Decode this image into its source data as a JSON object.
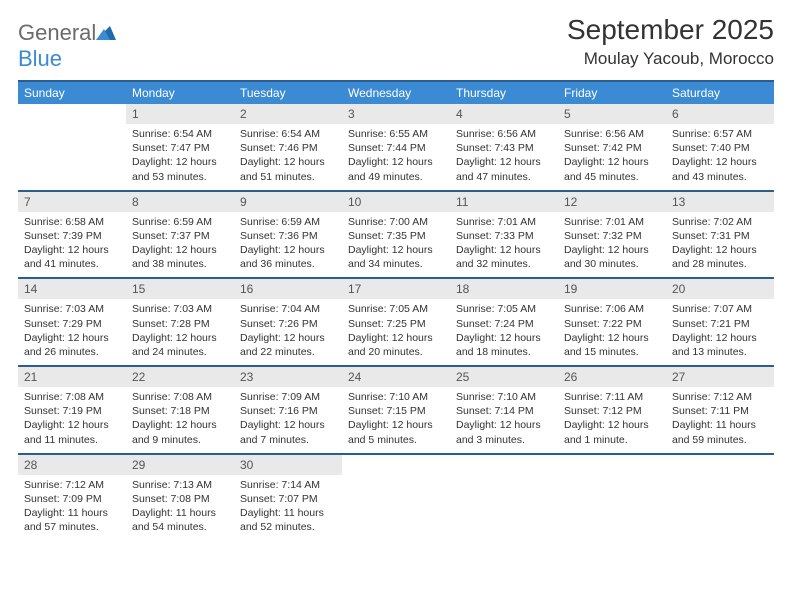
{
  "brand": {
    "part1": "General",
    "part2": "Blue"
  },
  "title": "September 2025",
  "location": "Moulay Yacoub, Morocco",
  "colors": {
    "header_bg": "#3b8bd4",
    "header_text": "#ffffff",
    "border": "#295e8e",
    "daynum_bg": "#e9e9e9",
    "daynum_text": "#555555",
    "body_text": "#333333",
    "logo_gray": "#6b6b6b",
    "logo_blue": "#3b8bd4",
    "page_bg": "#ffffff"
  },
  "weekdays": [
    "Sunday",
    "Monday",
    "Tuesday",
    "Wednesday",
    "Thursday",
    "Friday",
    "Saturday"
  ],
  "weeks": [
    [
      {
        "num": "",
        "sunrise": "",
        "sunset": "",
        "daylight": ""
      },
      {
        "num": "1",
        "sunrise": "Sunrise: 6:54 AM",
        "sunset": "Sunset: 7:47 PM",
        "daylight": "Daylight: 12 hours and 53 minutes."
      },
      {
        "num": "2",
        "sunrise": "Sunrise: 6:54 AM",
        "sunset": "Sunset: 7:46 PM",
        "daylight": "Daylight: 12 hours and 51 minutes."
      },
      {
        "num": "3",
        "sunrise": "Sunrise: 6:55 AM",
        "sunset": "Sunset: 7:44 PM",
        "daylight": "Daylight: 12 hours and 49 minutes."
      },
      {
        "num": "4",
        "sunrise": "Sunrise: 6:56 AM",
        "sunset": "Sunset: 7:43 PM",
        "daylight": "Daylight: 12 hours and 47 minutes."
      },
      {
        "num": "5",
        "sunrise": "Sunrise: 6:56 AM",
        "sunset": "Sunset: 7:42 PM",
        "daylight": "Daylight: 12 hours and 45 minutes."
      },
      {
        "num": "6",
        "sunrise": "Sunrise: 6:57 AM",
        "sunset": "Sunset: 7:40 PM",
        "daylight": "Daylight: 12 hours and 43 minutes."
      }
    ],
    [
      {
        "num": "7",
        "sunrise": "Sunrise: 6:58 AM",
        "sunset": "Sunset: 7:39 PM",
        "daylight": "Daylight: 12 hours and 41 minutes."
      },
      {
        "num": "8",
        "sunrise": "Sunrise: 6:59 AM",
        "sunset": "Sunset: 7:37 PM",
        "daylight": "Daylight: 12 hours and 38 minutes."
      },
      {
        "num": "9",
        "sunrise": "Sunrise: 6:59 AM",
        "sunset": "Sunset: 7:36 PM",
        "daylight": "Daylight: 12 hours and 36 minutes."
      },
      {
        "num": "10",
        "sunrise": "Sunrise: 7:00 AM",
        "sunset": "Sunset: 7:35 PM",
        "daylight": "Daylight: 12 hours and 34 minutes."
      },
      {
        "num": "11",
        "sunrise": "Sunrise: 7:01 AM",
        "sunset": "Sunset: 7:33 PM",
        "daylight": "Daylight: 12 hours and 32 minutes."
      },
      {
        "num": "12",
        "sunrise": "Sunrise: 7:01 AM",
        "sunset": "Sunset: 7:32 PM",
        "daylight": "Daylight: 12 hours and 30 minutes."
      },
      {
        "num": "13",
        "sunrise": "Sunrise: 7:02 AM",
        "sunset": "Sunset: 7:31 PM",
        "daylight": "Daylight: 12 hours and 28 minutes."
      }
    ],
    [
      {
        "num": "14",
        "sunrise": "Sunrise: 7:03 AM",
        "sunset": "Sunset: 7:29 PM",
        "daylight": "Daylight: 12 hours and 26 minutes."
      },
      {
        "num": "15",
        "sunrise": "Sunrise: 7:03 AM",
        "sunset": "Sunset: 7:28 PM",
        "daylight": "Daylight: 12 hours and 24 minutes."
      },
      {
        "num": "16",
        "sunrise": "Sunrise: 7:04 AM",
        "sunset": "Sunset: 7:26 PM",
        "daylight": "Daylight: 12 hours and 22 minutes."
      },
      {
        "num": "17",
        "sunrise": "Sunrise: 7:05 AM",
        "sunset": "Sunset: 7:25 PM",
        "daylight": "Daylight: 12 hours and 20 minutes."
      },
      {
        "num": "18",
        "sunrise": "Sunrise: 7:05 AM",
        "sunset": "Sunset: 7:24 PM",
        "daylight": "Daylight: 12 hours and 18 minutes."
      },
      {
        "num": "19",
        "sunrise": "Sunrise: 7:06 AM",
        "sunset": "Sunset: 7:22 PM",
        "daylight": "Daylight: 12 hours and 15 minutes."
      },
      {
        "num": "20",
        "sunrise": "Sunrise: 7:07 AM",
        "sunset": "Sunset: 7:21 PM",
        "daylight": "Daylight: 12 hours and 13 minutes."
      }
    ],
    [
      {
        "num": "21",
        "sunrise": "Sunrise: 7:08 AM",
        "sunset": "Sunset: 7:19 PM",
        "daylight": "Daylight: 12 hours and 11 minutes."
      },
      {
        "num": "22",
        "sunrise": "Sunrise: 7:08 AM",
        "sunset": "Sunset: 7:18 PM",
        "daylight": "Daylight: 12 hours and 9 minutes."
      },
      {
        "num": "23",
        "sunrise": "Sunrise: 7:09 AM",
        "sunset": "Sunset: 7:16 PM",
        "daylight": "Daylight: 12 hours and 7 minutes."
      },
      {
        "num": "24",
        "sunrise": "Sunrise: 7:10 AM",
        "sunset": "Sunset: 7:15 PM",
        "daylight": "Daylight: 12 hours and 5 minutes."
      },
      {
        "num": "25",
        "sunrise": "Sunrise: 7:10 AM",
        "sunset": "Sunset: 7:14 PM",
        "daylight": "Daylight: 12 hours and 3 minutes."
      },
      {
        "num": "26",
        "sunrise": "Sunrise: 7:11 AM",
        "sunset": "Sunset: 7:12 PM",
        "daylight": "Daylight: 12 hours and 1 minute."
      },
      {
        "num": "27",
        "sunrise": "Sunrise: 7:12 AM",
        "sunset": "Sunset: 7:11 PM",
        "daylight": "Daylight: 11 hours and 59 minutes."
      }
    ],
    [
      {
        "num": "28",
        "sunrise": "Sunrise: 7:12 AM",
        "sunset": "Sunset: 7:09 PM",
        "daylight": "Daylight: 11 hours and 57 minutes."
      },
      {
        "num": "29",
        "sunrise": "Sunrise: 7:13 AM",
        "sunset": "Sunset: 7:08 PM",
        "daylight": "Daylight: 11 hours and 54 minutes."
      },
      {
        "num": "30",
        "sunrise": "Sunrise: 7:14 AM",
        "sunset": "Sunset: 7:07 PM",
        "daylight": "Daylight: 11 hours and 52 minutes."
      },
      {
        "num": "",
        "sunrise": "",
        "sunset": "",
        "daylight": ""
      },
      {
        "num": "",
        "sunrise": "",
        "sunset": "",
        "daylight": ""
      },
      {
        "num": "",
        "sunrise": "",
        "sunset": "",
        "daylight": ""
      },
      {
        "num": "",
        "sunrise": "",
        "sunset": "",
        "daylight": ""
      }
    ]
  ]
}
